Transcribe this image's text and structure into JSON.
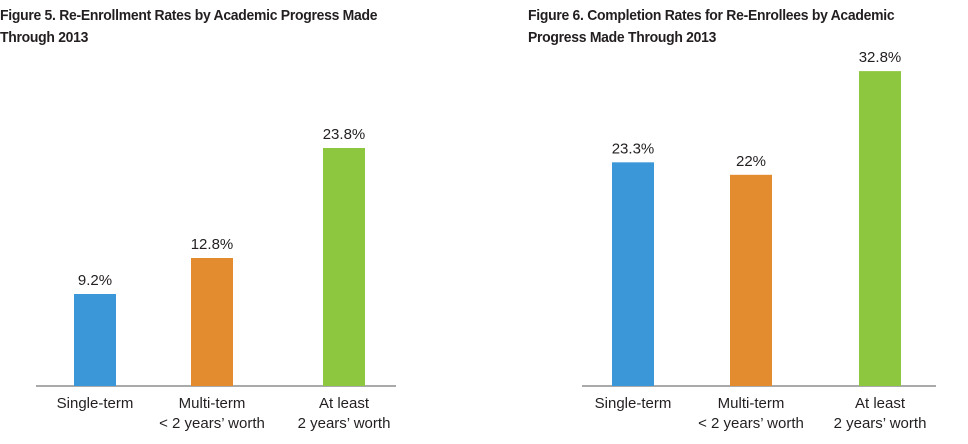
{
  "chart_data": [
    {
      "type": "bar",
      "title_lines": [
        "Figure 5. Re-Enrollment Rates by Academic Progress Made",
        "Through 2013"
      ],
      "categories": [
        [
          "Single-term"
        ],
        [
          "Multi-term",
          "< 2 years’ worth"
        ],
        [
          "At least",
          "2 years’ worth"
        ]
      ],
      "values": [
        9.2,
        12.8,
        23.8
      ],
      "value_labels": [
        "9.2%",
        "12.8%",
        "23.8%"
      ],
      "colors": [
        "#3b97d8",
        "#e38b2f",
        "#8dc63f"
      ],
      "xlabel": "",
      "ylabel": "",
      "ylim": [
        0,
        30
      ],
      "grid": false,
      "legend": "none"
    },
    {
      "type": "bar",
      "title_lines": [
        "Figure 6. Completion Rates for Re-Enrollees by Academic",
        "Progress Made Through 2013"
      ],
      "categories": [
        [
          "Single-term"
        ],
        [
          "Multi-term",
          "< 2 years’ worth"
        ],
        [
          "At least",
          "2 years’ worth"
        ]
      ],
      "values": [
        23.3,
        22,
        32.8
      ],
      "value_labels": [
        "23.3%",
        "22%",
        "32.8%"
      ],
      "colors": [
        "#3b97d8",
        "#e38b2f",
        "#8dc63f"
      ],
      "xlabel": "",
      "ylabel": "",
      "ylim": [
        0,
        35
      ],
      "grid": false,
      "legend": "none"
    }
  ]
}
